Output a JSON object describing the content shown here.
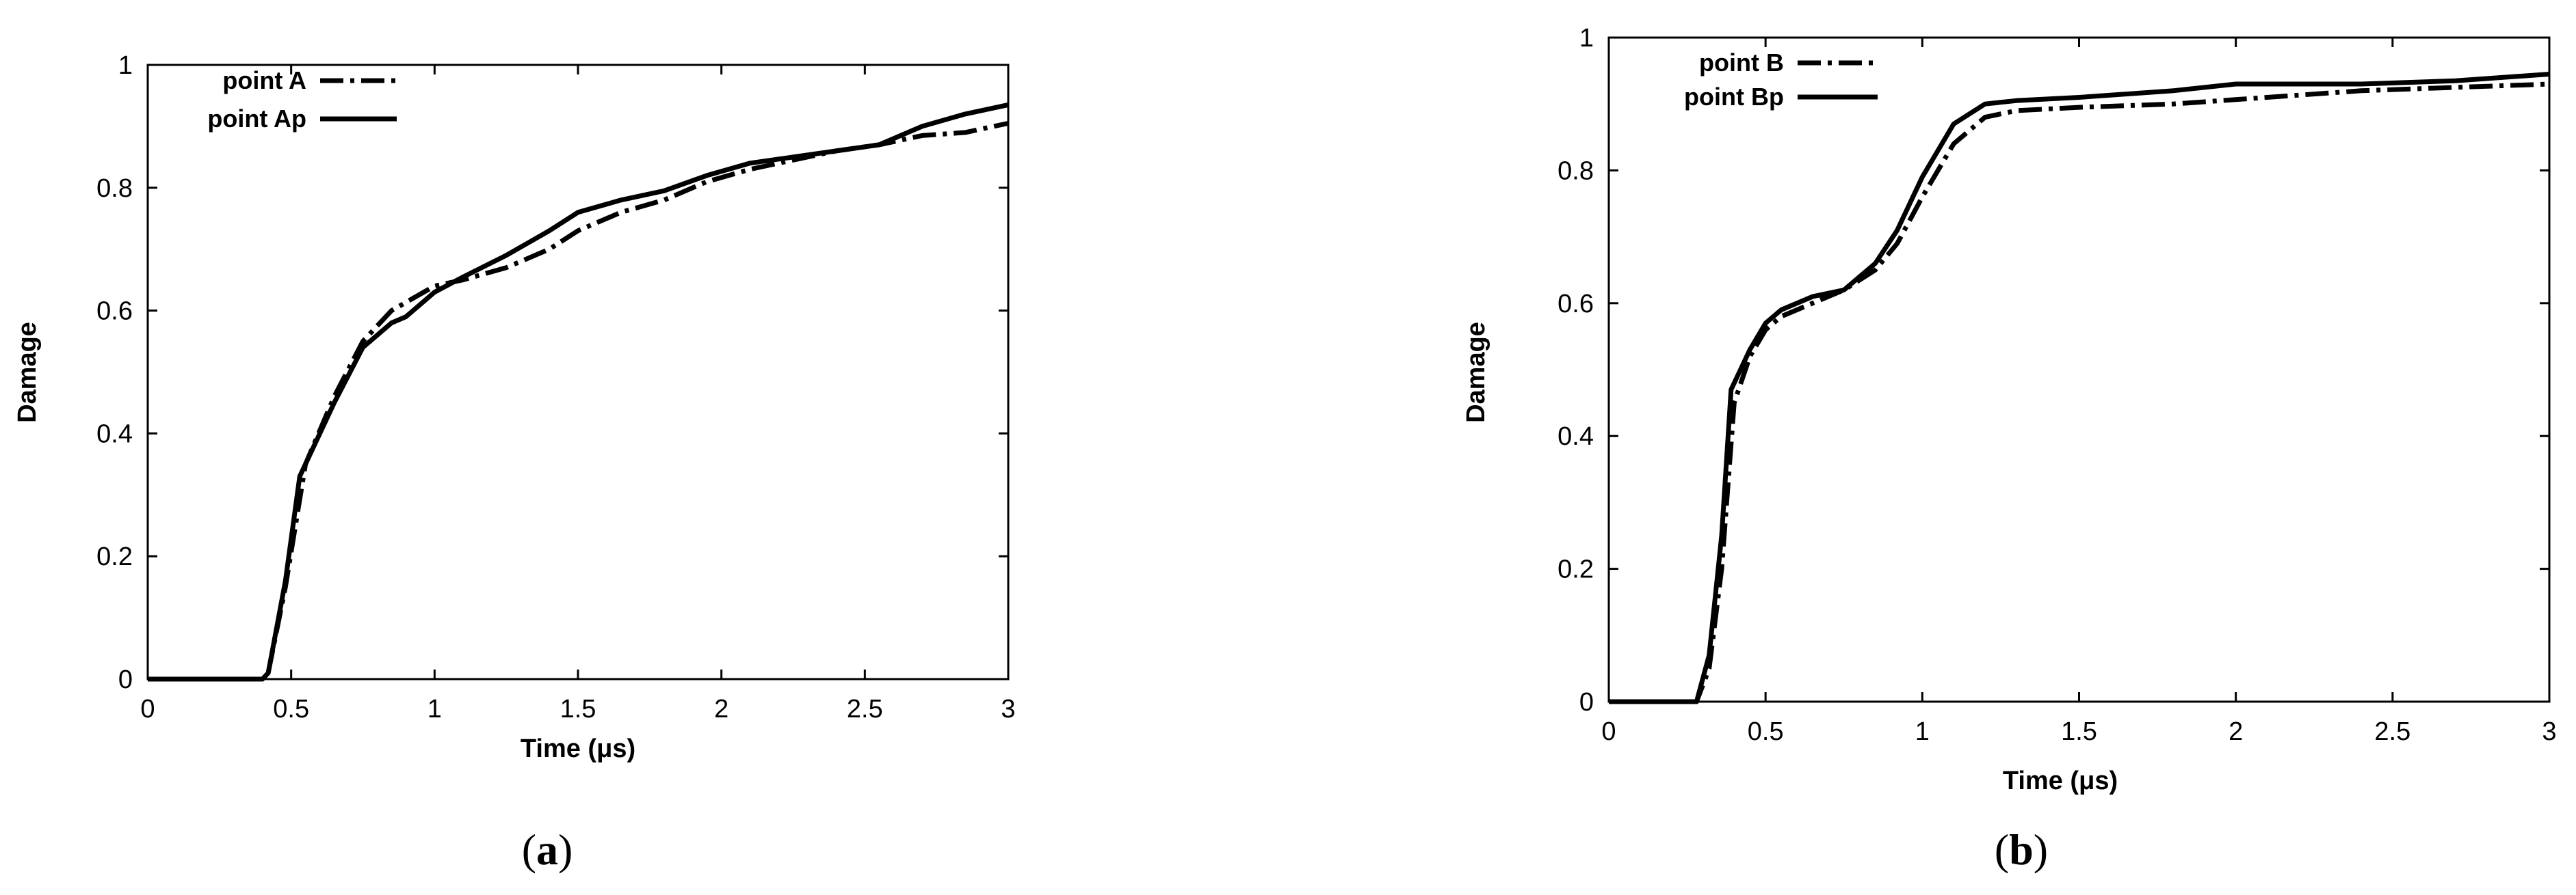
{
  "chart_data": [
    {
      "type": "line",
      "panel_label": "a",
      "xlabel": "Time (μs)",
      "ylabel": "Damage",
      "xlim": [
        0,
        3
      ],
      "ylim": [
        0,
        1
      ],
      "xticks": [
        "0",
        "0.5",
        "1",
        "1.5",
        "2",
        "2.5",
        "3"
      ],
      "yticks": [
        "0",
        "0.2",
        "0.4",
        "0.6",
        "0.8",
        "1"
      ],
      "legend_position": "top-left",
      "grid": false,
      "series": [
        {
          "name": "point A",
          "style": "dashdot",
          "x": [
            0,
            0.3,
            0.4,
            0.42,
            0.48,
            0.55,
            0.65,
            0.75,
            0.85,
            1.0,
            1.1,
            1.25,
            1.4,
            1.5,
            1.65,
            1.8,
            1.95,
            2.1,
            2.25,
            2.4,
            2.55,
            2.7,
            2.85,
            3.0
          ],
          "y": [
            0,
            0,
            0,
            0.01,
            0.15,
            0.35,
            0.46,
            0.55,
            0.6,
            0.64,
            0.65,
            0.67,
            0.7,
            0.73,
            0.76,
            0.78,
            0.81,
            0.83,
            0.845,
            0.86,
            0.87,
            0.885,
            0.89,
            0.905
          ]
        },
        {
          "name": "point Ap",
          "style": "solid",
          "x": [
            0,
            0.3,
            0.4,
            0.42,
            0.48,
            0.53,
            0.65,
            0.75,
            0.85,
            0.9,
            1.0,
            1.1,
            1.25,
            1.4,
            1.5,
            1.65,
            1.8,
            1.95,
            2.1,
            2.25,
            2.4,
            2.55,
            2.7,
            2.85,
            3.0
          ],
          "y": [
            0,
            0,
            0,
            0.01,
            0.16,
            0.33,
            0.45,
            0.54,
            0.58,
            0.59,
            0.63,
            0.655,
            0.69,
            0.73,
            0.76,
            0.78,
            0.795,
            0.82,
            0.84,
            0.85,
            0.86,
            0.87,
            0.9,
            0.92,
            0.935
          ]
        }
      ]
    },
    {
      "type": "line",
      "panel_label": "b",
      "xlabel": "Time (μs)",
      "ylabel": "Damage",
      "xlim": [
        0,
        3
      ],
      "ylim": [
        0,
        1
      ],
      "xticks": [
        "0",
        "0.5",
        "1",
        "1.5",
        "2",
        "2.5",
        "3"
      ],
      "yticks": [
        "0",
        "0.2",
        "0.4",
        "0.6",
        "0.8",
        "1"
      ],
      "legend_position": "top-left",
      "grid": false,
      "series": [
        {
          "name": "point B",
          "style": "dashdot",
          "x": [
            0,
            0.25,
            0.28,
            0.32,
            0.36,
            0.4,
            0.45,
            0.5,
            0.55,
            0.65,
            0.75,
            0.85,
            0.92,
            1.0,
            1.1,
            1.2,
            1.3,
            1.5,
            1.8,
            2.1,
            2.4,
            2.7,
            3.0
          ],
          "y": [
            0,
            0,
            0,
            0.05,
            0.2,
            0.45,
            0.52,
            0.56,
            0.58,
            0.6,
            0.62,
            0.65,
            0.69,
            0.76,
            0.84,
            0.88,
            0.89,
            0.895,
            0.9,
            0.91,
            0.92,
            0.925,
            0.93
          ]
        },
        {
          "name": "point Bp",
          "style": "solid",
          "x": [
            0,
            0.25,
            0.28,
            0.32,
            0.36,
            0.39,
            0.45,
            0.5,
            0.55,
            0.65,
            0.75,
            0.85,
            0.92,
            1.0,
            1.1,
            1.2,
            1.3,
            1.5,
            1.8,
            2.0,
            2.4,
            2.7,
            3.0
          ],
          "y": [
            0,
            0,
            0,
            0.07,
            0.25,
            0.47,
            0.53,
            0.57,
            0.59,
            0.61,
            0.62,
            0.66,
            0.71,
            0.79,
            0.87,
            0.9,
            0.905,
            0.91,
            0.92,
            0.93,
            0.93,
            0.935,
            0.945
          ]
        }
      ]
    }
  ],
  "captions": {
    "a": {
      "open": "(",
      "letter": "a",
      "close": ")"
    },
    "b": {
      "open": "(",
      "letter": "b",
      "close": ")"
    }
  }
}
